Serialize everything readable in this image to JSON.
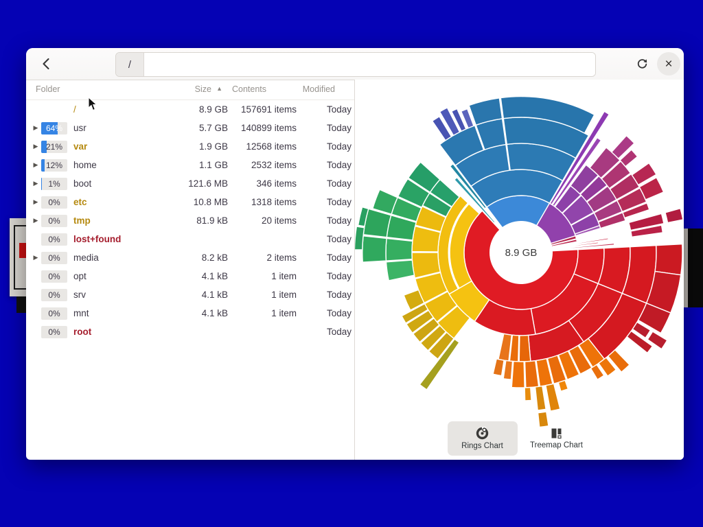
{
  "header": {
    "path": {
      "segments": [
        "/"
      ]
    }
  },
  "table": {
    "columns": {
      "folder": "Folder",
      "size": "Size",
      "contents": "Contents",
      "modified": "Modified"
    },
    "sort_indicator": "▲",
    "rows": [
      {
        "name": "/",
        "style": "olive",
        "bold": false,
        "expander": false,
        "percent": null,
        "percent_label": "",
        "size": "8.9 GB",
        "contents": "157691 items",
        "modified": "Today"
      },
      {
        "name": "usr",
        "style": "default",
        "bold": false,
        "expander": true,
        "percent": 64,
        "percent_label": "64%",
        "size": "5.7 GB",
        "contents": "140899 items",
        "modified": "Today"
      },
      {
        "name": "var",
        "style": "olive",
        "bold": true,
        "expander": true,
        "percent": 21,
        "percent_label": "21%",
        "size": "1.9 GB",
        "contents": "12568 items",
        "modified": "Today"
      },
      {
        "name": "home",
        "style": "default",
        "bold": false,
        "expander": true,
        "percent": 12,
        "percent_label": "12%",
        "size": "1.1 GB",
        "contents": "2532 items",
        "modified": "Today"
      },
      {
        "name": "boot",
        "style": "default",
        "bold": false,
        "expander": true,
        "percent": 1,
        "percent_label": "1%",
        "size": "121.6 MB",
        "contents": "346 items",
        "modified": "Today"
      },
      {
        "name": "etc",
        "style": "olive",
        "bold": true,
        "expander": true,
        "percent": 0,
        "percent_label": "0%",
        "size": "10.8 MB",
        "contents": "1318 items",
        "modified": "Today"
      },
      {
        "name": "tmp",
        "style": "olive",
        "bold": true,
        "expander": true,
        "percent": 0,
        "percent_label": "0%",
        "size": "81.9 kB",
        "contents": "20 items",
        "modified": "Today"
      },
      {
        "name": "lost+found",
        "style": "red",
        "bold": true,
        "expander": false,
        "percent": 0,
        "percent_label": "0%",
        "size": "",
        "contents": "",
        "modified": "Today"
      },
      {
        "name": "media",
        "style": "default",
        "bold": false,
        "expander": true,
        "percent": 0,
        "percent_label": "0%",
        "size": "8.2 kB",
        "contents": "2 items",
        "modified": "Today"
      },
      {
        "name": "opt",
        "style": "default",
        "bold": false,
        "expander": false,
        "percent": 0,
        "percent_label": "0%",
        "size": "4.1 kB",
        "contents": "1 item",
        "modified": "Today"
      },
      {
        "name": "srv",
        "style": "default",
        "bold": false,
        "expander": false,
        "percent": 0,
        "percent_label": "0%",
        "size": "4.1 kB",
        "contents": "1 item",
        "modified": "Today"
      },
      {
        "name": "mnt",
        "style": "default",
        "bold": false,
        "expander": false,
        "percent": 0,
        "percent_label": "0%",
        "size": "4.1 kB",
        "contents": "1 item",
        "modified": "Today"
      },
      {
        "name": "root",
        "style": "red",
        "bold": true,
        "expander": false,
        "percent": 0,
        "percent_label": "0%",
        "size": "",
        "contents": "",
        "modified": "Today"
      }
    ]
  },
  "chart": {
    "center_label": "8.9 GB",
    "toggle": {
      "rings_label": "Rings Chart",
      "treemap_label": "Treemap Chart",
      "selected": "Rings Chart"
    }
  },
  "chart_data": {
    "type": "sunburst",
    "center_total": "8.9 GB",
    "level1": [
      {
        "name": "usr",
        "percent": 64,
        "color": "#e01b24"
      },
      {
        "name": "var",
        "percent": 21,
        "color": "#3c89d8"
      },
      {
        "name": "home",
        "percent": 12,
        "color": "#9141ac"
      },
      {
        "name": "boot",
        "percent": 1,
        "color": "#b5224c"
      }
    ],
    "geometry": {
      "hole_radius": 45,
      "ring_thickness": 38,
      "center": [
        242,
        252
      ]
    },
    "segments": [
      [
        -3,
        227,
        0,
        1,
        "#e01b24"
      ],
      [
        -3,
        22,
        1,
        2,
        "#dc1a22"
      ],
      [
        22,
        80,
        1,
        2,
        "#dc1a22"
      ],
      [
        80,
        124,
        1,
        2,
        "#da1a22"
      ],
      [
        -3,
        22,
        2,
        3,
        "#d81a21"
      ],
      [
        22,
        55,
        2,
        3,
        "#d81a21"
      ],
      [
        55,
        85,
        2,
        3,
        "#d61a21"
      ],
      [
        85,
        91,
        2,
        3,
        "#e66609"
      ],
      [
        91.5,
        96,
        2,
        3,
        "#ea6d09"
      ],
      [
        96.5,
        102,
        2,
        3,
        "#e8741a"
      ],
      [
        -3,
        22,
        3,
        4,
        "#d51920"
      ],
      [
        22,
        52,
        3,
        4,
        "#d41920"
      ],
      [
        52,
        58,
        3,
        4,
        "#ee7309"
      ],
      [
        58.5,
        64,
        3,
        4,
        "#e96c0b"
      ],
      [
        64.5,
        70,
        3,
        4,
        "#ee7309"
      ],
      [
        70.5,
        76,
        3,
        4,
        "#e96c0b"
      ],
      [
        76.5,
        82,
        3,
        4,
        "#ee7309"
      ],
      [
        82.5,
        88,
        3,
        4,
        "#e96c0b"
      ],
      [
        88.5,
        94,
        3,
        4,
        "#ee7309"
      ],
      [
        94.5,
        98,
        3,
        3.7,
        "#e8771b"
      ],
      [
        99,
        103,
        3,
        3.6,
        "#e47317"
      ],
      [
        -3,
        8,
        4,
        5,
        "#cb1a22"
      ],
      [
        8,
        22,
        4,
        5,
        "#c61a24"
      ],
      [
        22,
        30,
        4,
        5,
        "#c01b26"
      ],
      [
        46,
        50,
        4,
        4.8,
        "#e96d0a"
      ],
      [
        51,
        55,
        4,
        4.6,
        "#ed7609"
      ],
      [
        56,
        59,
        4,
        4.5,
        "#ea700d"
      ],
      [
        31,
        34.5,
        4,
        4.6,
        "#b81e2e"
      ],
      [
        31,
        34.5,
        4.7,
        5.35,
        "#b81e2e"
      ],
      [
        35.5,
        38.5,
        4,
        5,
        "#bc1c28"
      ],
      [
        71,
        74,
        4,
        4.35,
        "#ef8609"
      ],
      [
        76,
        79.5,
        4,
        5,
        "#e08409"
      ],
      [
        81,
        84,
        4,
        4.9,
        "#d8880c"
      ],
      [
        81,
        84,
        5,
        5.55,
        "#d8880c"
      ],
      [
        86,
        88.5,
        4,
        4.5,
        "#e88d0e"
      ],
      [
        124,
        150,
        1,
        2,
        "#f5c211"
      ],
      [
        150,
        223,
        1,
        1.55,
        "#f5c211"
      ],
      [
        150,
        223,
        1.6,
        2,
        "#f2be10"
      ],
      [
        128,
        140,
        2,
        3,
        "#eebd10"
      ],
      [
        140.5,
        152,
        2,
        3,
        "#ecba0f"
      ],
      [
        152.5,
        166,
        2,
        3,
        "#eebd10"
      ],
      [
        166.5,
        180,
        2,
        3,
        "#ecba0f"
      ],
      [
        180.5,
        194,
        2,
        3,
        "#eebd10"
      ],
      [
        194.5,
        205,
        2,
        3,
        "#ecba0f"
      ],
      [
        128,
        133,
        3,
        4,
        "#cda513"
      ],
      [
        133.5,
        138,
        3,
        4,
        "#d0a811"
      ],
      [
        138.5,
        143,
        3,
        4,
        "#cda513"
      ],
      [
        143.5,
        148,
        3,
        4,
        "#d0a811"
      ],
      [
        148.5,
        152,
        3,
        4,
        "#cda513"
      ],
      [
        152.5,
        160,
        3,
        3.6,
        "#d4ab10"
      ],
      [
        124.5,
        127.5,
        3,
        5.2,
        "#a5a01f"
      ],
      [
        205.5,
        213,
        2,
        3,
        "#2aa065"
      ],
      [
        213.5,
        222,
        2,
        3,
        "#27a06b"
      ],
      [
        168,
        176,
        3,
        4,
        "#3cb466"
      ],
      [
        176.5,
        186,
        3,
        4,
        "#35ae60"
      ],
      [
        186.5,
        196,
        3,
        4,
        "#2fa85c"
      ],
      [
        196.5,
        204,
        3,
        4,
        "#33ab60"
      ],
      [
        204.5,
        213,
        3,
        4,
        "#2aa365"
      ],
      [
        213.5,
        222,
        3,
        4,
        "#269e68"
      ],
      [
        176.5,
        186,
        4,
        4.9,
        "#30a95e"
      ],
      [
        186.5,
        196,
        4,
        4.9,
        "#2da55c"
      ],
      [
        196.5,
        204,
        4,
        4.75,
        "#32a960"
      ],
      [
        181,
        189,
        4.9,
        5.2,
        "#2ba05f"
      ],
      [
        189.5,
        196,
        4.9,
        5.15,
        "#28a061"
      ],
      [
        233,
        300,
        0,
        1,
        "#3c89d8"
      ],
      [
        227.5,
        229.5,
        0.35,
        2.6,
        "#2e9aac"
      ],
      [
        230.5,
        232.5,
        1,
        3.1,
        "#2387a3"
      ],
      [
        233,
        300,
        1,
        2,
        "#2e7cb8"
      ],
      [
        233,
        262,
        2,
        3,
        "#2d7bb5"
      ],
      [
        262.5,
        300,
        2,
        3,
        "#2c7ab3"
      ],
      [
        233,
        250,
        3,
        4,
        "#2b78b0"
      ],
      [
        250.5,
        262,
        3,
        4,
        "#2b78b0"
      ],
      [
        262.5,
        300,
        3,
        4,
        "#2977ae"
      ],
      [
        250.5,
        262,
        4,
        4.8,
        "#2a76ad"
      ],
      [
        262.5,
        298,
        4,
        4.8,
        "#2875ac"
      ],
      [
        236,
        239,
        4,
        4.9,
        "#4853b2"
      ],
      [
        240,
        243,
        4,
        5.05,
        "#4e59b8"
      ],
      [
        243.8,
        246,
        4,
        4.85,
        "#4853b2"
      ],
      [
        247,
        249.5,
        4,
        4.7,
        "#5a64bd"
      ],
      [
        300,
        343,
        0,
        1,
        "#9141ac"
      ],
      [
        300.5,
        302.5,
        1,
        5.1,
        "#8d3ab2"
      ],
      [
        303.5,
        305.5,
        1,
        4.1,
        "#9a44b4"
      ],
      [
        306.5,
        316,
        1,
        2,
        "#8d41a8"
      ],
      [
        316.5,
        331,
        1,
        2,
        "#9145ab"
      ],
      [
        331.5,
        341,
        1,
        2,
        "#8d41a8"
      ],
      [
        341,
        343,
        1,
        2,
        "#a257b4"
      ],
      [
        306.5,
        315,
        2,
        3,
        "#8f3f9f"
      ],
      [
        315.5,
        322,
        2,
        3,
        "#93399a"
      ],
      [
        322.5,
        331,
        2,
        3,
        "#a23a84"
      ],
      [
        331.5,
        338,
        2,
        3,
        "#a83a80"
      ],
      [
        338.5,
        343,
        2,
        3,
        "#b03068"
      ],
      [
        309,
        317,
        3,
        4,
        "#a83a80"
      ],
      [
        317.5,
        324,
        3,
        4,
        "#ae3572"
      ],
      [
        324.5,
        331,
        3,
        4,
        "#b02e62"
      ],
      [
        331.5,
        338,
        3,
        4,
        "#b52c58"
      ],
      [
        338.5,
        341.5,
        3,
        4,
        "#b7264e"
      ],
      [
        312,
        316,
        4,
        4.85,
        "#ab3a86"
      ],
      [
        317,
        320.5,
        4,
        4.6,
        "#b03473"
      ],
      [
        325,
        330,
        4,
        4.8,
        "#b72753"
      ],
      [
        331,
        337,
        4,
        4.75,
        "#bb2448"
      ],
      [
        344.5,
        348.5,
        3.1,
        4.4,
        "#b51d42"
      ],
      [
        344.5,
        348.5,
        4.55,
        5.15,
        "#b11c40"
      ],
      [
        349,
        352,
        3.1,
        4.3,
        "#ba2147"
      ],
      [
        343,
        346,
        0,
        1,
        "#b5224c"
      ],
      [
        346.5,
        349,
        0,
        1,
        "#c03055"
      ],
      [
        350.5,
        351.5,
        0,
        2.2,
        "#cc2b4a"
      ],
      [
        352.3,
        353.3,
        0,
        1.8,
        "#d63048"
      ],
      [
        354.3,
        355.4,
        0,
        2.4,
        "#c42f52"
      ]
    ]
  }
}
